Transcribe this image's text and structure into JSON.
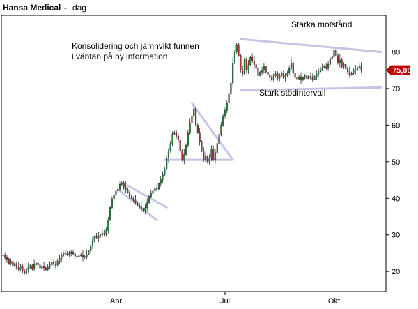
{
  "header": {
    "title": "Hansa Medical",
    "separator": "-",
    "interval": "dag"
  },
  "chart_data": {
    "type": "candlestick",
    "title": "Hansa Medical",
    "interval": "dag",
    "y_axis": {
      "position": "right",
      "ticks": [
        20,
        30,
        40,
        50,
        60,
        70,
        80
      ],
      "ylim": [
        14.5,
        90
      ]
    },
    "x_axis": {
      "tick_labels": [
        "Apr",
        "Jul",
        "Okt"
      ],
      "tick_positions": [
        58,
        114,
        170
      ]
    },
    "last_price": {
      "value": 75,
      "label": "75,00",
      "color": "#c00000"
    },
    "up_color": "#1f8a3a",
    "down_color": "#b03030",
    "trend_color": "#c8c4e6",
    "candle_count": 185,
    "close": [
      24.5,
      23.8,
      23.2,
      22.1,
      22.8,
      21.5,
      22.2,
      21.0,
      20.6,
      21.4,
      20.2,
      19.4,
      20.5,
      21.0,
      21.6,
      20.8,
      21.9,
      22.3,
      21.8,
      20.9,
      21.5,
      21.0,
      20.5,
      21.2,
      21.8,
      22.5,
      22.0,
      21.7,
      22.8,
      23.6,
      24.3,
      24.8,
      25.1,
      24.6,
      24.9,
      25.3,
      24.8,
      24.2,
      24.0,
      24.3,
      24.5,
      24.1,
      23.9,
      24.6,
      25.6,
      27.0,
      28.2,
      29.5,
      29.2,
      29.7,
      30.0,
      30.4,
      30.1,
      31.2,
      34.0,
      37.5,
      39.8,
      40.8,
      42.0,
      42.5,
      43.8,
      44.1,
      43.0,
      42.4,
      41.6,
      40.5,
      40.0,
      39.5,
      38.8,
      38.2,
      37.6,
      37.0,
      36.5,
      37.4,
      38.8,
      40.5,
      41.3,
      42.0,
      42.8,
      42.5,
      44.0,
      45.1,
      46.5,
      48.0,
      51.0,
      53.0,
      55.0,
      57.5,
      58.0,
      57.0,
      56.0,
      53.0,
      50.5,
      52.0,
      54.5,
      58.0,
      60.5,
      62.5,
      64.5,
      60.0,
      58.0,
      55.5,
      53.0,
      50.5,
      51.5,
      50.0,
      51.0,
      53.5,
      50.5,
      52.5,
      55.0,
      57.5,
      60.0,
      62.5,
      64.0,
      66.0,
      68.5,
      71.5,
      77.0,
      80.0,
      82.0,
      79.0,
      75.0,
      74.0,
      78.0,
      75.0,
      76.5,
      78.5,
      77.5,
      76.5,
      75.5,
      73.5,
      74.5,
      75.0,
      76.0,
      74.5,
      73.8,
      73.0,
      72.5,
      73.5,
      74.0,
      72.8,
      73.5,
      74.2,
      73.0,
      73.6,
      74.3,
      75.5,
      77.0,
      74.2,
      73.0,
      72.6,
      73.2,
      72.3,
      73.0,
      73.5,
      72.7,
      73.4,
      73.0,
      72.5,
      73.3,
      74.0,
      74.6,
      75.2,
      75.8,
      76.2,
      75.5,
      76.6,
      78.0,
      78.6,
      80.5,
      79.0,
      77.0,
      77.8,
      76.0,
      76.6,
      75.4,
      74.6,
      73.8,
      74.2,
      75.0,
      75.2,
      75.6,
      76.0,
      75.0
    ],
    "annotations": [
      {
        "lines": [
          "Konsolidering och jämnvikt funnen",
          "i väntan på ny information"
        ]
      },
      {
        "lines": [
          "Starka motstånd"
        ]
      },
      {
        "lines": [
          "Stark stödintervall"
        ]
      }
    ],
    "trendlines": [
      {
        "name": "flag-1-upper",
        "points": [
          [
            64,
            43.5
          ],
          [
            84,
            37.5
          ]
        ]
      },
      {
        "name": "flag-1-lower",
        "points": [
          [
            60,
            42.0
          ],
          [
            79,
            34.0
          ]
        ]
      },
      {
        "name": "triangle-1-upper",
        "points": [
          [
            97,
            66.0
          ],
          [
            118,
            50.5
          ]
        ]
      },
      {
        "name": "triangle-1-base",
        "points": [
          [
            83,
            50.5
          ],
          [
            118,
            50.5
          ]
        ]
      },
      {
        "name": "resistance",
        "points": [
          [
            122,
            83.5
          ],
          [
            194,
            80.0
          ]
        ]
      },
      {
        "name": "support",
        "points": [
          [
            122,
            69.5
          ],
          [
            194,
            70.3
          ]
        ]
      }
    ],
    "grid": false
  }
}
